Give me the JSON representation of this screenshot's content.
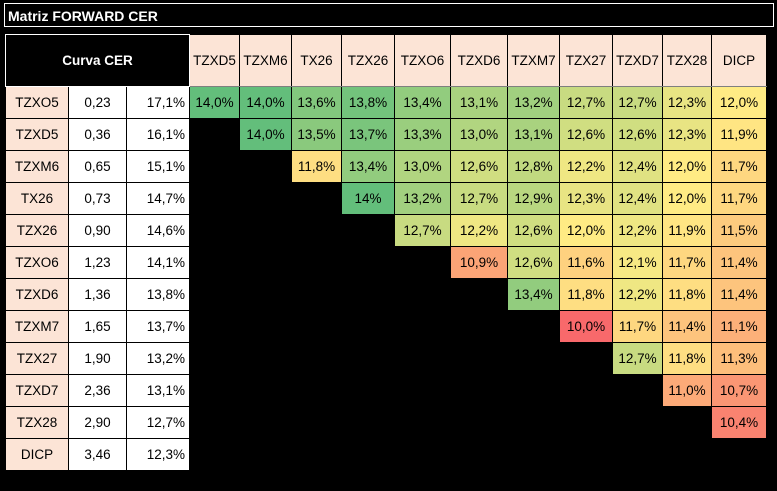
{
  "title": "Matriz FORWARD CER",
  "curva_label": "Curva CER",
  "chart_data": {
    "type": "heatmap",
    "columns": [
      "TZXD5",
      "TZXM6",
      "TX26",
      "TZX26",
      "TZXO6",
      "TZXD6",
      "TZXM7",
      "TZX27",
      "TZXD7",
      "TZX28",
      "DICP"
    ],
    "rows": [
      {
        "name": "TZXO5",
        "duration": "0,23",
        "rate": "17,1%",
        "start": 0,
        "cells": [
          "14,0%",
          "14,0%",
          "13,6%",
          "13,8%",
          "13,4%",
          "13,1%",
          "13,2%",
          "12,7%",
          "12,7%",
          "12,3%",
          "12,0%"
        ]
      },
      {
        "name": "TZXD5",
        "duration": "0,36",
        "rate": "16,1%",
        "start": 1,
        "cells": [
          "14,0%",
          "13,5%",
          "13,7%",
          "13,3%",
          "13,0%",
          "13,1%",
          "12,6%",
          "12,6%",
          "12,3%",
          "11,9%"
        ]
      },
      {
        "name": "TZXM6",
        "duration": "0,65",
        "rate": "15,1%",
        "start": 2,
        "cells": [
          "11,8%",
          "13,4%",
          "13,0%",
          "12,6%",
          "12,8%",
          "12,2%",
          "12,4%",
          "12,0%",
          "11,7%"
        ]
      },
      {
        "name": "TX26",
        "duration": "0,73",
        "rate": "14,7%",
        "start": 3,
        "cells": [
          "14%",
          "13,2%",
          "12,7%",
          "12,9%",
          "12,3%",
          "12,4%",
          "12,0%",
          "11,7%"
        ]
      },
      {
        "name": "TZX26",
        "duration": "0,90",
        "rate": "14,6%",
        "start": 4,
        "cells": [
          "12,7%",
          "12,2%",
          "12,6%",
          "12,0%",
          "12,2%",
          "11,9%",
          "11,5%"
        ]
      },
      {
        "name": "TZXO6",
        "duration": "1,23",
        "rate": "14,1%",
        "start": 5,
        "cells": [
          "10,9%",
          "12,6%",
          "11,6%",
          "12,1%",
          "11,7%",
          "11,4%"
        ]
      },
      {
        "name": "TZXD6",
        "duration": "1,36",
        "rate": "13,8%",
        "start": 6,
        "cells": [
          "13,4%",
          "11,8%",
          "12,2%",
          "11,8%",
          "11,4%"
        ]
      },
      {
        "name": "TZXM7",
        "duration": "1,65",
        "rate": "13,7%",
        "start": 7,
        "cells": [
          "10,0%",
          "11,7%",
          "11,4%",
          "11,1%"
        ]
      },
      {
        "name": "TZX27",
        "duration": "1,90",
        "rate": "13,2%",
        "start": 8,
        "cells": [
          "12,7%",
          "11,8%",
          "11,3%"
        ]
      },
      {
        "name": "TZXD7",
        "duration": "2,36",
        "rate": "13,1%",
        "start": 9,
        "cells": [
          "11,0%",
          "10,7%"
        ]
      },
      {
        "name": "TZX28",
        "duration": "2,90",
        "rate": "12,7%",
        "start": 10,
        "cells": [
          "10,4%"
        ]
      },
      {
        "name": "DICP",
        "duration": "3,46",
        "rate": "12,3%",
        "start": 11,
        "cells": []
      }
    ],
    "color_scale": {
      "low": "#f8696b",
      "mid": "#ffeb84",
      "high": "#63be7b"
    }
  }
}
